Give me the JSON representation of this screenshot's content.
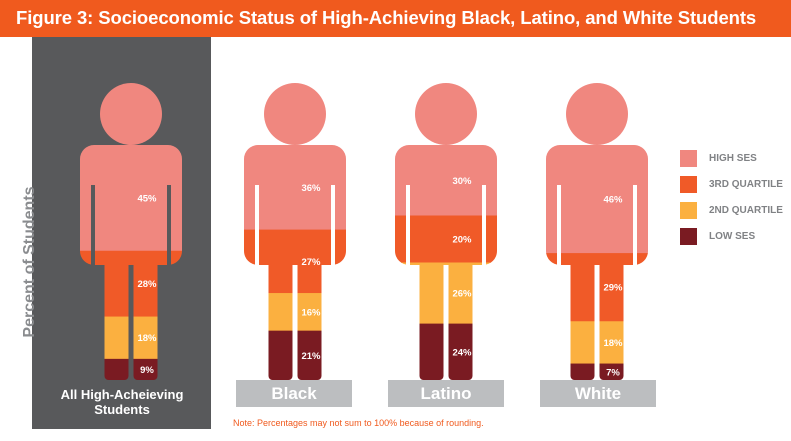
{
  "title": "Figure 3: Socioeconomic Status of High-Achieving Black, Latino, and White Students",
  "ylabel": "Percent of Students",
  "note": "Note: Percentages may not sum to 100% because of rounding.",
  "colors": {
    "high_ses": "#f0877f",
    "third_quartile": "#f05a28",
    "second_quartile": "#fbb040",
    "low_ses": "#7a1b22",
    "title_bg": "#f05a1e",
    "panel_bg": "#58595b",
    "category_box": "#bcbec0"
  },
  "legend": [
    {
      "label": "HIGH SES",
      "color_key": "high_ses"
    },
    {
      "label": "3RD QUARTILE",
      "color_key": "third_quartile"
    },
    {
      "label": "2ND QUARTILE",
      "color_key": "second_quartile"
    },
    {
      "label": "LOW SES",
      "color_key": "low_ses"
    }
  ],
  "chart_data": {
    "type": "bar",
    "stacked": true,
    "ylabel": "Percent of Students",
    "categories": [
      "All High-Acheieving Students",
      "Black",
      "Latino",
      "White"
    ],
    "series": [
      {
        "name": "HIGH SES",
        "values": [
          45,
          36,
          30,
          46
        ],
        "labels": [
          "45%",
          "36%",
          "30%",
          "46%"
        ]
      },
      {
        "name": "3RD QUARTILE",
        "values": [
          28,
          27,
          20,
          29
        ],
        "labels": [
          "28%",
          "27%",
          "20%",
          "29%"
        ]
      },
      {
        "name": "2ND QUARTILE",
        "values": [
          18,
          16,
          26,
          18
        ],
        "labels": [
          "18%",
          "16%",
          "26%",
          "18%"
        ]
      },
      {
        "name": "LOW SES",
        "values": [
          9,
          21,
          24,
          7
        ],
        "labels": [
          "9%",
          "21%",
          "24%",
          "7%"
        ]
      }
    ]
  }
}
